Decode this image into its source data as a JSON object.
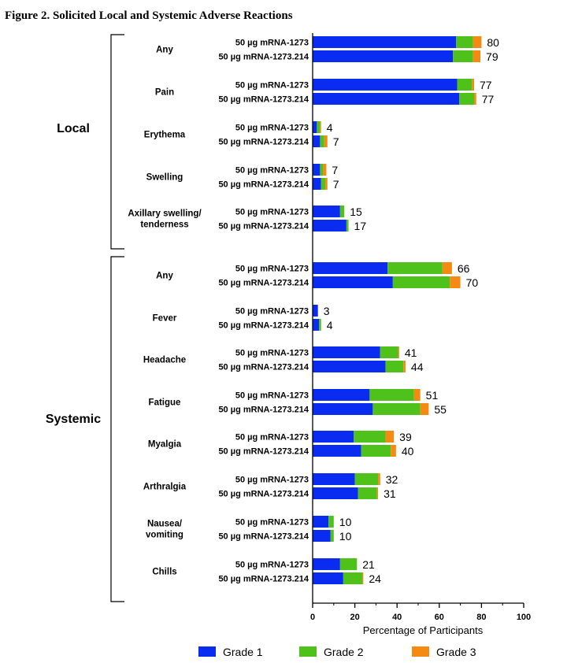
{
  "chart_data": {
    "type": "bar",
    "orientation": "horizontal",
    "stacked": true,
    "title": "Figure 2. Solicited Local and Systemic Adverse Reactions",
    "xlabel": "Percentage of Participants",
    "xlim": [
      0,
      100
    ],
    "xticks": [
      "0",
      "20",
      "40",
      "60",
      "80",
      "100"
    ],
    "grid": false,
    "legend_position": "bottom",
    "arms": [
      "50 µg mRNA-1273",
      "50 µg mRNA-1273.214"
    ],
    "series": [
      {
        "name": "Grade 1",
        "color": "#0a2cf0"
      },
      {
        "name": "Grade 2",
        "color": "#4ec21a"
      },
      {
        "name": "Grade 3",
        "color": "#f58a12"
      }
    ],
    "groups": [
      {
        "name": "Local",
        "reactions": [
          {
            "name": "Any",
            "bars": [
              {
                "arm": "50 µg mRNA-1273",
                "grades": [
                  68,
                  8,
                  4
                ],
                "total": "80"
              },
              {
                "arm": "50 µg mRNA-1273.214",
                "grades": [
                  66.5,
                  9.5,
                  3.5
                ],
                "total": "79"
              }
            ]
          },
          {
            "name": "Pain",
            "bars": [
              {
                "arm": "50 µg mRNA-1273",
                "grades": [
                  68.5,
                  7,
                  1
                ],
                "total": "77"
              },
              {
                "arm": "50 µg mRNA-1273.214",
                "grades": [
                  69.5,
                  7,
                  1
                ],
                "total": "77"
              }
            ]
          },
          {
            "name": "Erythema",
            "bars": [
              {
                "arm": "50 µg mRNA-1273",
                "grades": [
                  2,
                  1.5,
                  0.5
                ],
                "total": "4"
              },
              {
                "arm": "50 µg mRNA-1273.214",
                "grades": [
                  3.5,
                  2,
                  1.5
                ],
                "total": "7"
              }
            ]
          },
          {
            "name": "Swelling",
            "bars": [
              {
                "arm": "50 µg mRNA-1273",
                "grades": [
                  3.5,
                  1.5,
                  1.5
                ],
                "total": "7"
              },
              {
                "arm": "50 µg mRNA-1273.214",
                "grades": [
                  4,
                  2,
                  1
                ],
                "total": "7"
              }
            ]
          },
          {
            "name": "Axillary swelling/ tenderness",
            "bars": [
              {
                "arm": "50 µg mRNA-1273",
                "grades": [
                  13,
                  2,
                  0
                ],
                "total": "15"
              },
              {
                "arm": "50 µg mRNA-1273.214",
                "grades": [
                  16,
                  1,
                  0
                ],
                "total": "17"
              }
            ]
          }
        ]
      },
      {
        "name": "Systemic",
        "reactions": [
          {
            "name": "Any",
            "bars": [
              {
                "arm": "50 µg mRNA-1273",
                "grades": [
                  35.5,
                  26,
                  4.5
                ],
                "total": "66"
              },
              {
                "arm": "50 µg mRNA-1273.214",
                "grades": [
                  38,
                  27,
                  5
                ],
                "total": "70"
              }
            ]
          },
          {
            "name": "Fever",
            "bars": [
              {
                "arm": "50 µg mRNA-1273",
                "grades": [
                  2.5,
                  0,
                  0
                ],
                "total": "3"
              },
              {
                "arm": "50 µg mRNA-1273.214",
                "grades": [
                  3,
                  1,
                  0
                ],
                "total": "4"
              }
            ]
          },
          {
            "name": "Headache",
            "bars": [
              {
                "arm": "50 µg mRNA-1273",
                "grades": [
                  32,
                  8.5,
                  0.5
                ],
                "total": "41"
              },
              {
                "arm": "50 µg mRNA-1273.214",
                "grades": [
                  34.5,
                  8.5,
                  1
                ],
                "total": "44"
              }
            ]
          },
          {
            "name": "Fatigue",
            "bars": [
              {
                "arm": "50 µg mRNA-1273",
                "grades": [
                  27,
                  21,
                  3
                ],
                "total": "51"
              },
              {
                "arm": "50 µg mRNA-1273.214",
                "grades": [
                  28.5,
                  22.5,
                  4
                ],
                "total": "55"
              }
            ]
          },
          {
            "name": "Myalgia",
            "bars": [
              {
                "arm": "50 µg mRNA-1273",
                "grades": [
                  19.5,
                  15,
                  4
                ],
                "total": "39"
              },
              {
                "arm": "50 µg mRNA-1273.214",
                "grades": [
                  23,
                  14,
                  2.5
                ],
                "total": "40"
              }
            ]
          },
          {
            "name": "Arthralgia",
            "bars": [
              {
                "arm": "50 µg mRNA-1273",
                "grades": [
                  20,
                  11,
                  1
                ],
                "total": "32"
              },
              {
                "arm": "50 µg mRNA-1273.214",
                "grades": [
                  21.5,
                  9,
                  0.5
                ],
                "total": "31"
              }
            ]
          },
          {
            "name": "Nausea/ vomiting",
            "bars": [
              {
                "arm": "50 µg mRNA-1273",
                "grades": [
                  7.5,
                  2.5,
                  0
                ],
                "total": "10"
              },
              {
                "arm": "50 µg mRNA-1273.214",
                "grades": [
                  8.5,
                  1.5,
                  0
                ],
                "total": "10"
              }
            ]
          },
          {
            "name": "Chills",
            "bars": [
              {
                "arm": "50 µg mRNA-1273",
                "grades": [
                  13,
                  8,
                  0
                ],
                "total": "21"
              },
              {
                "arm": "50 µg mRNA-1273.214",
                "grades": [
                  14.5,
                  9,
                  0.5
                ],
                "total": "24"
              }
            ]
          }
        ]
      }
    ]
  }
}
